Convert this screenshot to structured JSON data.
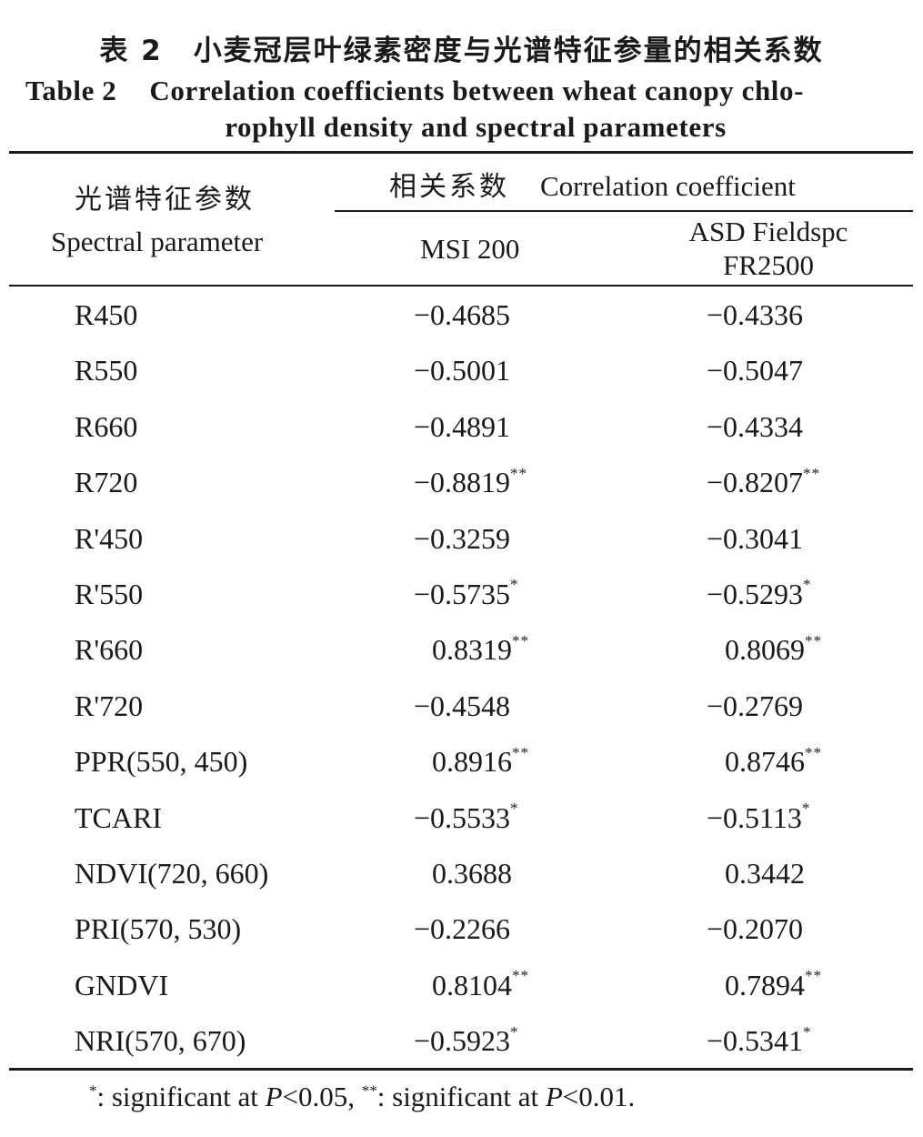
{
  "title": {
    "cn_number": "表 2",
    "cn_text": "小麦冠层叶绿素密度与光谱特征参量的相关系数",
    "en_number": "Table 2",
    "en_line1": "Correlation coefficients between wheat canopy chlo-",
    "en_line2": "rophyll density and spectral parameters"
  },
  "header": {
    "param_cn": "光谱特征参数",
    "param_en": "Spectral parameter",
    "corr_cn": "相关系数",
    "corr_en": "Correlation coefficient",
    "col_msi": "MSI 200",
    "col_asd_line1": "ASD Fieldspc",
    "col_asd_line2": "FR2500"
  },
  "rows": [
    {
      "param": "R450",
      "msi": "−0.4685",
      "msi_sig": "",
      "asd": "−0.4336",
      "asd_sig": ""
    },
    {
      "param": "R550",
      "msi": "−0.5001",
      "msi_sig": "",
      "asd": "−0.5047",
      "asd_sig": ""
    },
    {
      "param": "R660",
      "msi": "−0.4891",
      "msi_sig": "",
      "asd": "−0.4334",
      "asd_sig": ""
    },
    {
      "param": "R720",
      "msi": "−0.8819",
      "msi_sig": "**",
      "asd": "−0.8207",
      "asd_sig": "**"
    },
    {
      "param": "R'450",
      "msi": "−0.3259",
      "msi_sig": "",
      "asd": "−0.3041",
      "asd_sig": ""
    },
    {
      "param": "R'550",
      "msi": "−0.5735",
      "msi_sig": "*",
      "asd": "−0.5293",
      "asd_sig": "*"
    },
    {
      "param": "R'660",
      "msi": "0.8319",
      "msi_sig": "**",
      "asd": "0.8069",
      "asd_sig": "**"
    },
    {
      "param": "R'720",
      "msi": "−0.4548",
      "msi_sig": "",
      "asd": "−0.2769",
      "asd_sig": ""
    },
    {
      "param": "PPR(550, 450)",
      "msi": "0.8916",
      "msi_sig": "**",
      "asd": "0.8746",
      "asd_sig": "**"
    },
    {
      "param": "TCARI",
      "msi": "−0.5533",
      "msi_sig": "*",
      "asd": "−0.5113",
      "asd_sig": "*"
    },
    {
      "param": "NDVI(720, 660)",
      "msi": "0.3688",
      "msi_sig": "",
      "asd": "0.3442",
      "asd_sig": ""
    },
    {
      "param": "PRI(570, 530)",
      "msi": "−0.2266",
      "msi_sig": "",
      "asd": "−0.2070",
      "asd_sig": ""
    },
    {
      "param": "GNDVI",
      "msi": "0.8104",
      "msi_sig": "**",
      "asd": "0.7894",
      "asd_sig": "**"
    },
    {
      "param": "NRI(570, 670)",
      "msi": "−0.5923",
      "msi_sig": "*",
      "asd": "−0.5341",
      "asd_sig": "*"
    }
  ],
  "footnote": {
    "sym1": "*",
    "text1": ": significant at ",
    "p1": "P",
    "cond1": "<0.05, ",
    "sym2": "**",
    "text2": ": significant at ",
    "p2": "P",
    "cond2": "<0.01."
  }
}
